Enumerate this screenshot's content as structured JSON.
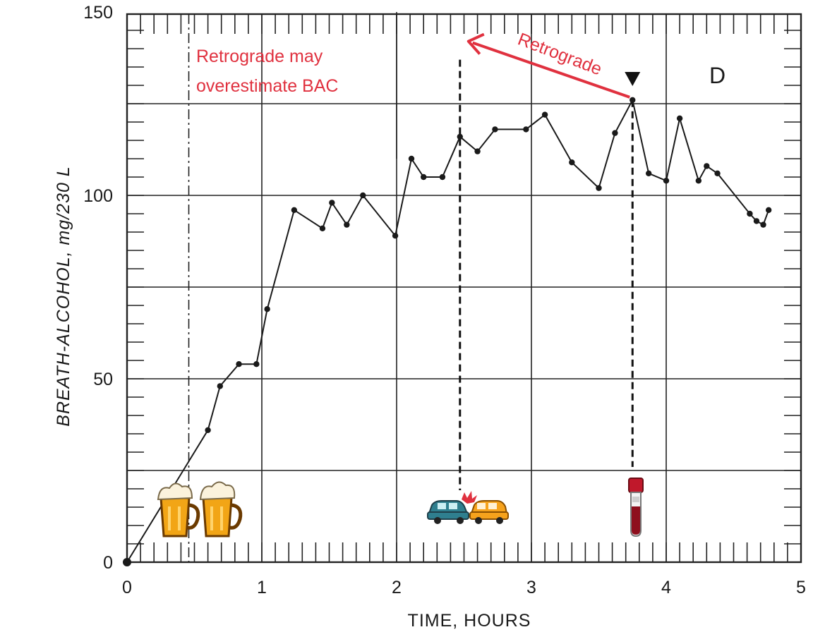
{
  "colors": {
    "line": "#1a1a1a",
    "grid": "#222222",
    "annotation": "#e0313f",
    "marker": "#111111"
  },
  "chart_data": {
    "type": "line",
    "xlabel": "TIME,  HOURS",
    "ylabel": "BREATH-ALCOHOL,  mg/230 L",
    "xlim": [
      0,
      5
    ],
    "ylim": [
      0,
      150
    ],
    "x_ticks": [
      "0",
      "1",
      "2",
      "3",
      "4",
      "5"
    ],
    "y_ticks": [
      "0",
      "50",
      "100",
      "150"
    ],
    "grid": true,
    "panel_label": "D",
    "series": [
      {
        "x": [
          0.0,
          0.6,
          0.69,
          0.83,
          0.96,
          1.04,
          1.24,
          1.45,
          1.52,
          1.63,
          1.75,
          1.99,
          2.11,
          2.2,
          2.34,
          2.47,
          2.6,
          2.73,
          2.96,
          3.1,
          3.3,
          3.5,
          3.62,
          3.75,
          3.87,
          4.0,
          4.1,
          4.24,
          4.3,
          4.38,
          4.62,
          4.67,
          4.72,
          4.76
        ],
        "y": [
          0,
          36,
          48,
          54,
          54,
          69,
          96,
          91,
          98,
          92,
          100,
          89,
          110,
          105,
          105,
          116,
          112,
          118,
          118,
          122,
          109,
          102,
          117,
          126,
          106,
          104,
          121,
          104,
          108,
          106,
          95,
          93,
          92,
          96
        ]
      }
    ],
    "annotations": {
      "overestimate_line1": "Retrograde may",
      "overestimate_line2": "overestimate  BAC",
      "arrow_label": "Retrograde",
      "drinking_start_hours": 0.5,
      "crash_time_hours": 2.47,
      "test_time_hours": 3.75
    }
  },
  "icons": {
    "drinking": "beer-mugs-icon",
    "crash": "car-crash-icon",
    "test": "blood-test-tube-icon"
  }
}
